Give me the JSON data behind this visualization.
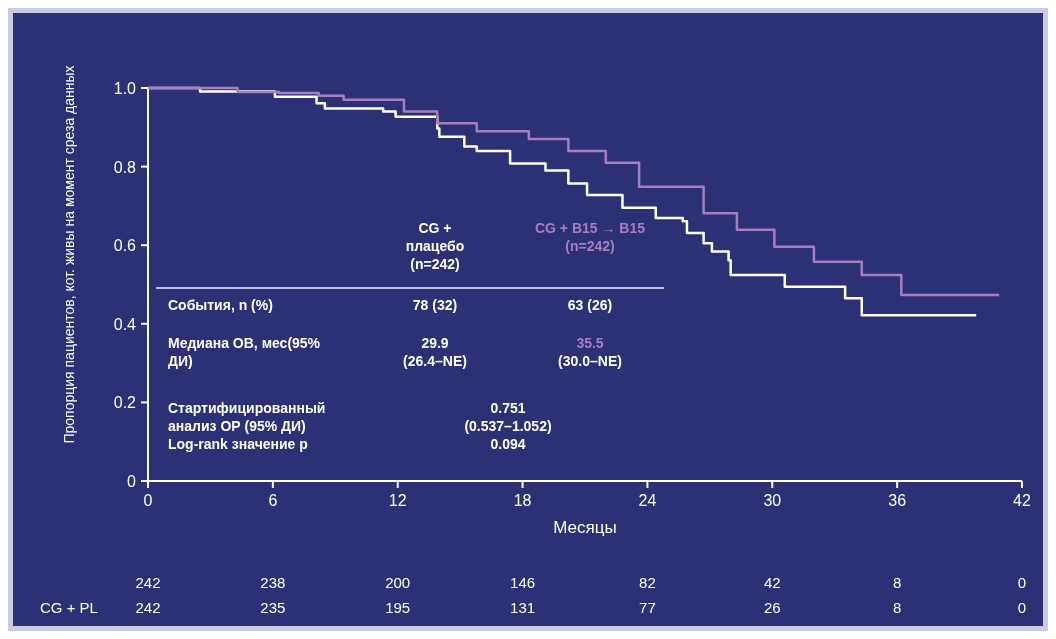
{
  "chart_data": {
    "type": "step",
    "xlabel": "Месяцы",
    "ylabel": "Пропорция пациентов, кот. живы на момент среза данных",
    "xlim": [
      0,
      42
    ],
    "xticks": [
      0,
      6,
      12,
      18,
      24,
      30,
      36,
      42
    ],
    "ylim": [
      0,
      1.0
    ],
    "yticks": [
      {
        "value": 0,
        "label": "0"
      },
      {
        "value": 0.2,
        "label": "0.2"
      },
      {
        "value": 0.4,
        "label": "0.4"
      },
      {
        "value": 0.6,
        "label": "0.6"
      },
      {
        "value": 0.8,
        "label": "0.8"
      },
      {
        "value": 1.0,
        "label": "1.0"
      }
    ],
    "grid": false,
    "legend": "center",
    "line_style": "solid",
    "series": [
      {
        "name": "CG +\nплацебо\n(n=242)",
        "color": "#ffffff",
        "x": [
          0,
          2.5,
          6.1,
          8.1,
          8.5,
          11.3,
          11.9,
          13.9,
          14.0,
          15.2,
          15.8,
          17.4,
          19.1,
          20.2,
          21.1,
          22.8,
          24.4,
          25.7,
          25.9,
          26.7,
          27.1,
          27.9,
          28.0,
          30.6,
          33.5,
          34.3,
          39.8
        ],
        "values": [
          1.0,
          0.991,
          0.978,
          0.961,
          0.948,
          0.94,
          0.927,
          0.897,
          0.876,
          0.851,
          0.84,
          0.808,
          0.79,
          0.757,
          0.728,
          0.695,
          0.669,
          0.661,
          0.631,
          0.605,
          0.584,
          0.562,
          0.524,
          0.494,
          0.465,
          0.422,
          0.422
        ]
      },
      {
        "name": "CG + B15 → B15\n(n=242)",
        "color": "#a77fc0",
        "x": [
          0,
          4.3,
          6.3,
          8.2,
          9.4,
          12.3,
          13.9,
          15.8,
          18.3,
          20.2,
          22.0,
          23.6,
          26.7,
          28.3,
          30.1,
          32.0,
          34.3,
          36.2,
          40.9
        ],
        "values": [
          1.0,
          0.99,
          0.987,
          0.98,
          0.97,
          0.94,
          0.91,
          0.89,
          0.87,
          0.84,
          0.81,
          0.749,
          0.681,
          0.639,
          0.596,
          0.558,
          0.524,
          0.473,
          0.473
        ]
      }
    ],
    "annotations": [
      "События, n (%)",
      "78 (32)",
      "63 (26)",
      "Медиана ОВ, мес(95%\nДИ)",
      "29.9\n(26.4–NE)",
      "35.5\n(30.0–NE)",
      "Стартифицированный\nанализ ОР (95% ДИ)",
      "0.751\n(0.537–1.052)",
      "Log-rank значение p",
      "0.094",
      "242 238 200 146 82 42 8 0",
      "CG + PL",
      "242 235 195 131 77 26 8 0"
    ]
  }
}
